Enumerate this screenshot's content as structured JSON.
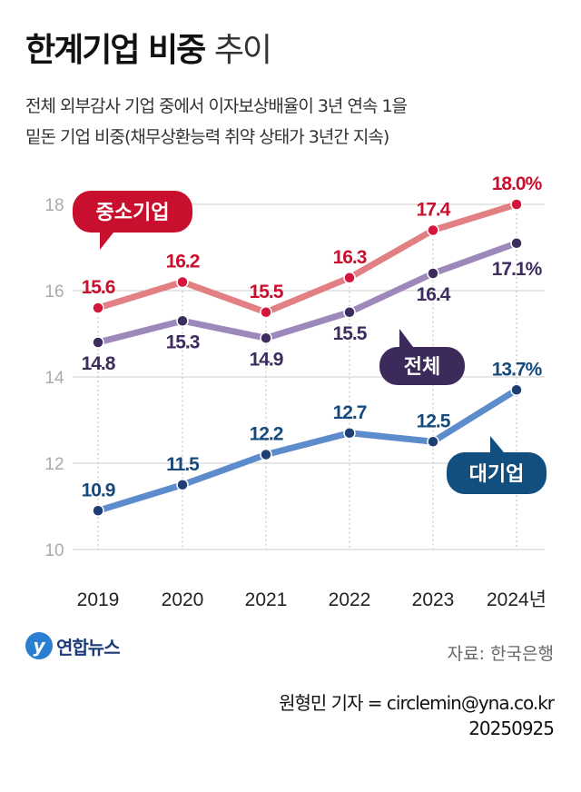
{
  "title_bold": "한계기업 비중",
  "title_light": "추이",
  "subtitle_line1": "전체 외부감사 기업 중에서 이자보상배율이 3년 연속 1을",
  "subtitle_line2": "밑돈 기업 비중(채무상환능력 취약 상태가 3년간 지속)",
  "source": "자료: 한국은행",
  "credit": "원형민 기자 = circlemin@yna.co.kr",
  "date": "20250925",
  "logo_text": "연합뉴스",
  "chart_data": {
    "type": "line",
    "categories": [
      "2019",
      "2020",
      "2021",
      "2022",
      "2023",
      "2024년"
    ],
    "ylim": [
      10,
      18
    ],
    "yticks": [
      10,
      12,
      14,
      16,
      18
    ],
    "grid": true,
    "series": [
      {
        "name": "중소기업",
        "values": [
          15.6,
          16.2,
          15.5,
          16.3,
          17.4,
          18.0
        ],
        "labels": [
          "15.6",
          "16.2",
          "15.5",
          "16.3",
          "17.4",
          "18.0%"
        ],
        "line_color": "#e17f82",
        "dot_color": "#d4163c",
        "label_color": "#c8102e"
      },
      {
        "name": "전체",
        "values": [
          14.8,
          15.3,
          14.9,
          15.5,
          16.4,
          17.1
        ],
        "labels": [
          "14.8",
          "15.3",
          "14.9",
          "15.5",
          "16.4",
          "17.1%"
        ],
        "line_color": "#9c88ba",
        "dot_color": "#3d2c5e",
        "label_color": "#3d2c5e"
      },
      {
        "name": "대기업",
        "values": [
          10.9,
          11.5,
          12.2,
          12.7,
          12.5,
          13.7
        ],
        "labels": [
          "10.9",
          "11.5",
          "12.2",
          "12.7",
          "12.5",
          "13.7%"
        ],
        "line_color": "#5d8ccc",
        "dot_color": "#1d3f73",
        "label_color": "#174a7c"
      }
    ]
  }
}
